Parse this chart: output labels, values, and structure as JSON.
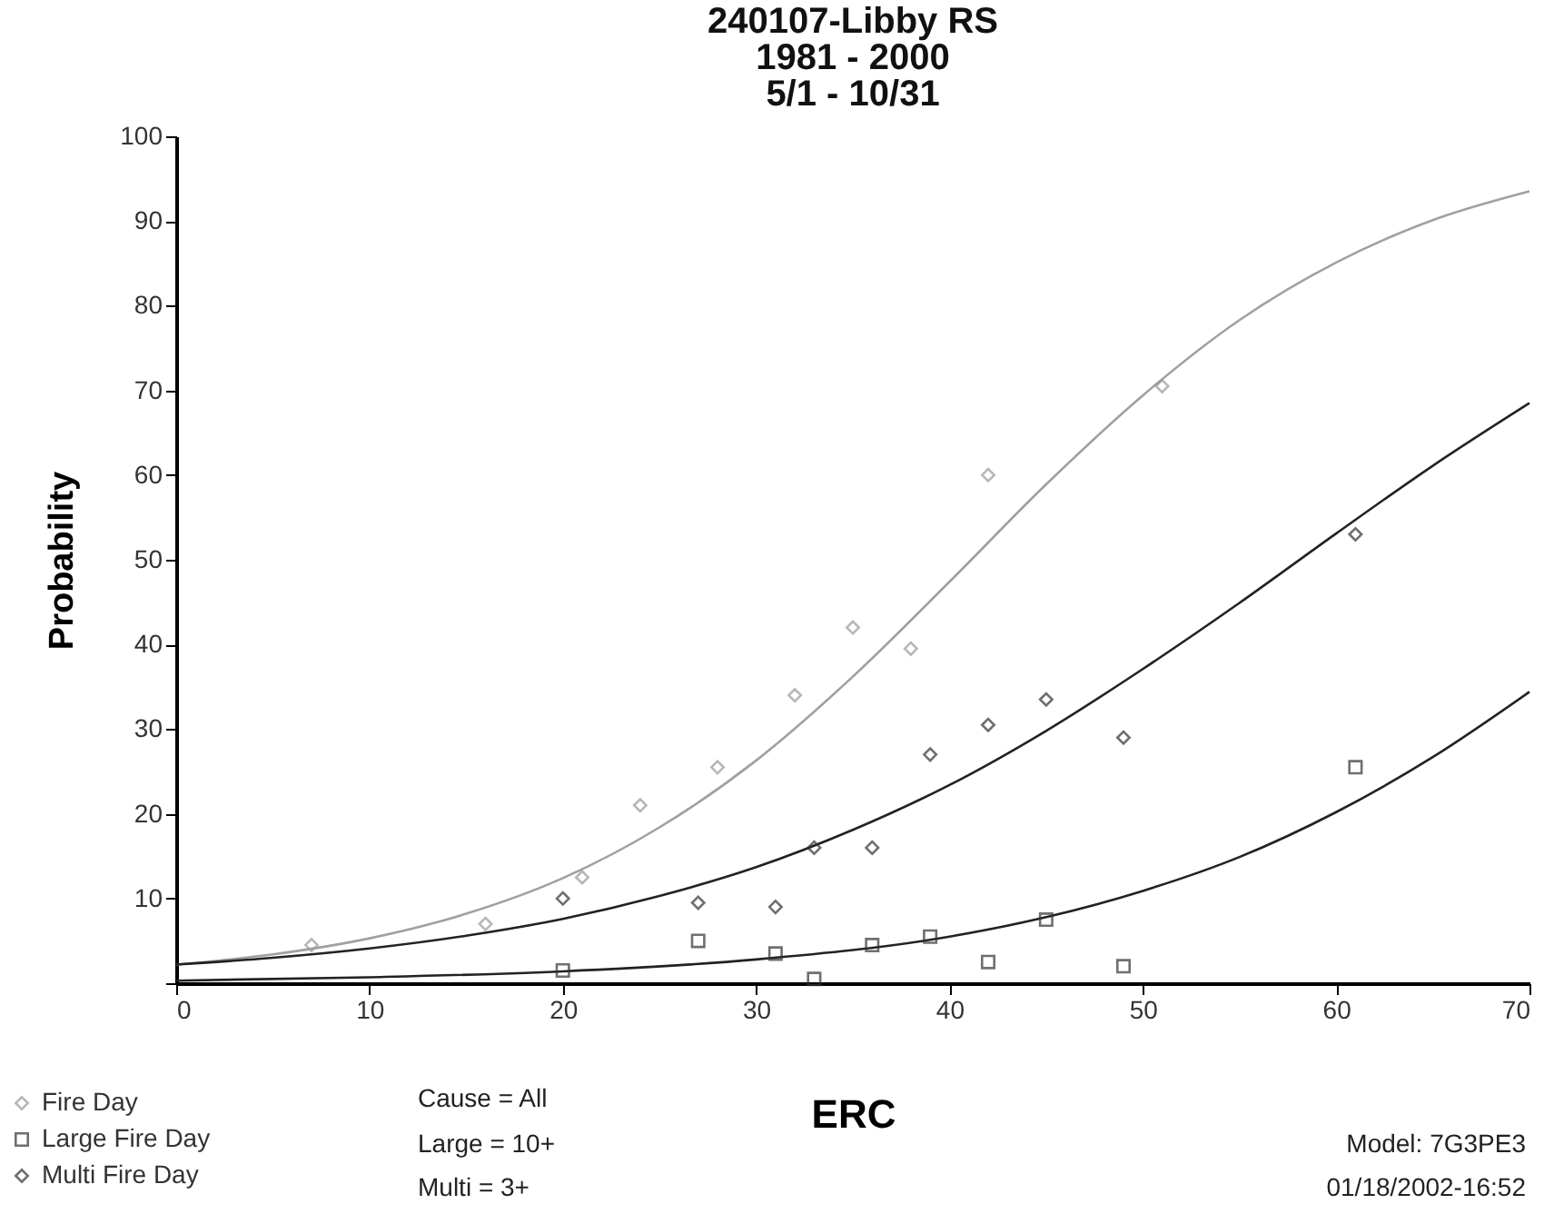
{
  "chart_data": {
    "type": "scatter",
    "title": "240107-Libby RS\n1981 - 2000\n5/1 - 10/31",
    "xlabel": "ERC",
    "ylabel": "Probability",
    "xlim": [
      0,
      70
    ],
    "ylim": [
      0,
      100
    ],
    "xticks": [
      0,
      10,
      20,
      30,
      40,
      50,
      60,
      70
    ],
    "yticks": [
      {
        "value": 0,
        "label": null
      },
      10,
      20,
      30,
      40,
      50,
      60,
      70,
      80,
      90,
      100
    ],
    "legend": "bottom left",
    "series": [
      {
        "type": "line",
        "color": "#a0a0a0",
        "x": [
          0,
          5,
          10,
          15,
          20,
          25,
          30,
          35,
          40,
          45,
          50,
          55,
          60,
          65,
          70
        ],
        "values": [
          2.2,
          3.4,
          5.3,
          8.2,
          12.4,
          18.4,
          26.3,
          36.2,
          47.4,
          58.9,
          69.4,
          78.3,
          85.1,
          90.1,
          93.5
        ]
      },
      {
        "type": "line",
        "color": "#222222",
        "x": [
          0,
          10,
          20,
          30,
          40,
          45,
          50,
          55,
          60,
          65,
          70
        ],
        "values": [
          0.3,
          0.7,
          1.4,
          2.8,
          5.5,
          7.8,
          10.9,
          14.9,
          20.2,
          26.7,
          34.4
        ]
      },
      {
        "type": "line",
        "color": "#222222",
        "x": [
          0,
          5,
          10,
          15,
          20,
          25,
          30,
          35,
          40,
          45,
          50,
          55,
          60,
          65,
          70
        ],
        "values": [
          2.2,
          3.0,
          4.1,
          5.6,
          7.6,
          10.3,
          13.7,
          18.1,
          23.4,
          29.8,
          37.1,
          44.9,
          53.1,
          61.1,
          68.5
        ]
      },
      {
        "type": "scatter",
        "name": "Fire Day",
        "color": "#999999",
        "marker": "diamond",
        "x": [
          7,
          16,
          21,
          24,
          28,
          32,
          35,
          38,
          42,
          51
        ],
        "values": [
          4.5,
          7,
          12.5,
          21,
          25.5,
          34,
          42,
          39.5,
          60,
          70.5
        ]
      },
      {
        "type": "scatter",
        "name": "Large Fire Day",
        "color": "#333333",
        "marker": "square",
        "x": [
          20,
          27,
          31,
          33,
          36,
          39,
          42,
          45,
          49,
          61
        ],
        "values": [
          1.5,
          5,
          3.5,
          0.5,
          4.5,
          5.5,
          2.5,
          7.5,
          2,
          25.5
        ]
      },
      {
        "type": "scatter",
        "name": "Multi Fire Day",
        "color": "#333333",
        "marker": "diamond",
        "x": [
          20,
          27,
          31,
          33,
          36,
          39,
          42,
          45,
          49,
          61
        ],
        "values": [
          10,
          9.5,
          9,
          16,
          16,
          27,
          30.5,
          33.5,
          29,
          53
        ]
      }
    ],
    "annotations": [
      "Cause = All",
      "Large = 10+",
      "Multi = 3+",
      "Model: 7G3PE3",
      "01/18/2002-16:52"
    ]
  }
}
